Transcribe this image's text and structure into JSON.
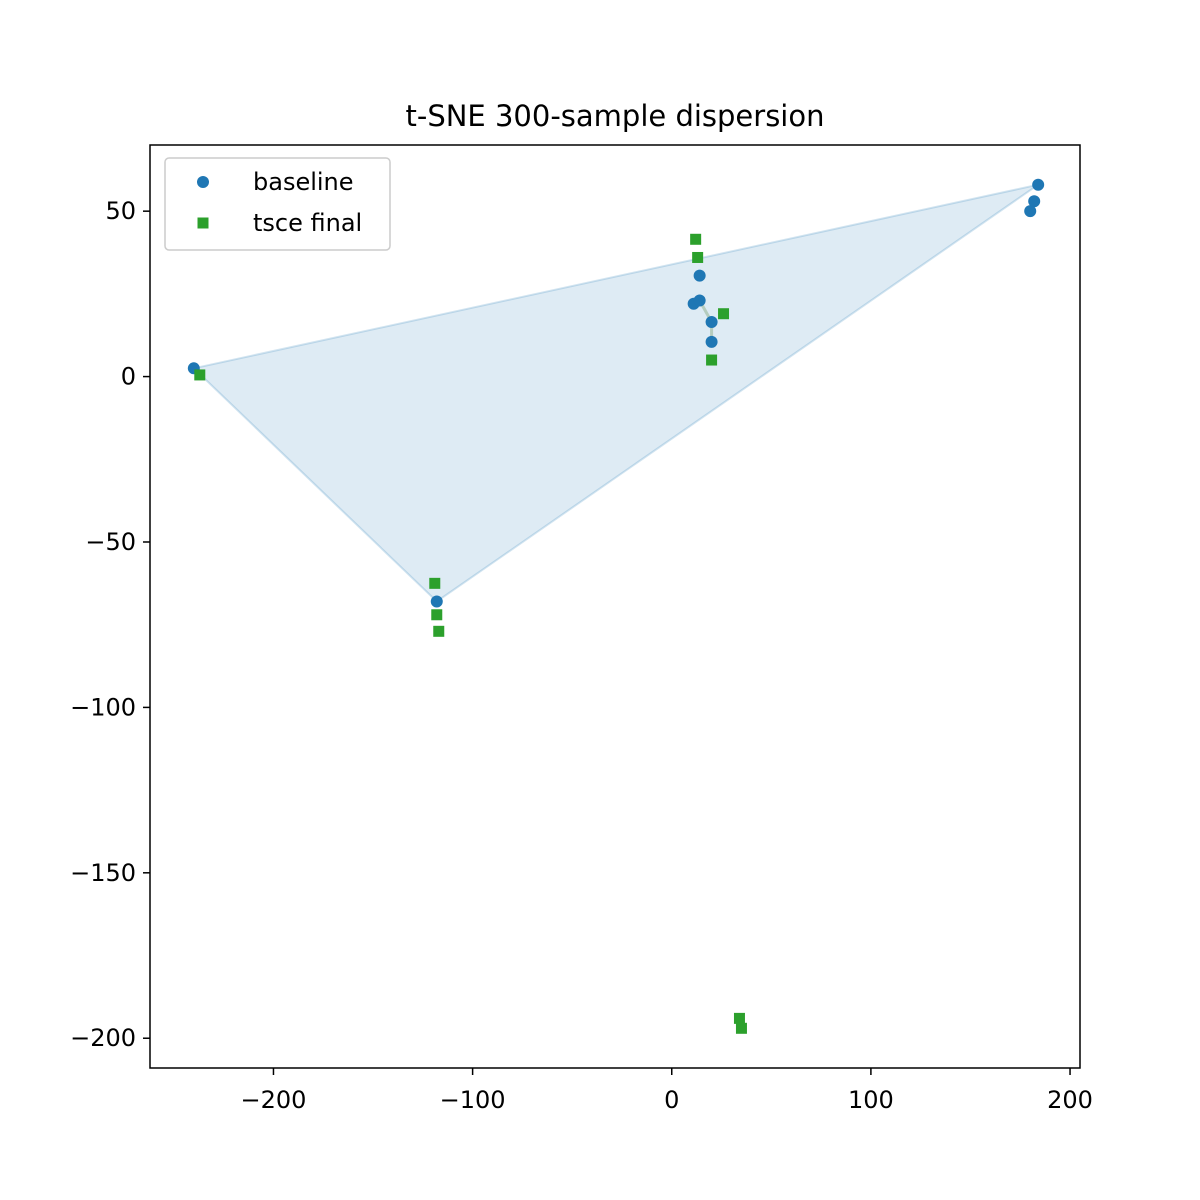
{
  "chart_data": {
    "type": "scatter",
    "title": "t-SNE 300-sample dispersion",
    "xlabel": "",
    "ylabel": "",
    "xlim": [
      -262,
      205
    ],
    "ylim": [
      -209,
      70
    ],
    "xticks": [
      -200,
      -100,
      0,
      100,
      200
    ],
    "yticks": [
      50,
      0,
      -50,
      -100,
      -150,
      -200
    ],
    "legend_position": "top-left",
    "grid": false,
    "hull": {
      "points": [
        [
          -240,
          2.5
        ],
        [
          184,
          58
        ],
        [
          -118,
          -68
        ]
      ],
      "color": "#1f77b4"
    },
    "connectors": [
      [
        [
          14,
          23
        ],
        [
          20,
          16.5
        ]
      ],
      [
        [
          20,
          16.5
        ],
        [
          20,
          10.5
        ]
      ]
    ],
    "series": [
      {
        "name": "baseline",
        "marker": "circle",
        "color": "#1f77b4",
        "points": [
          [
            -240,
            2.5
          ],
          [
            -118,
            -68
          ],
          [
            11,
            22
          ],
          [
            14,
            23
          ],
          [
            14,
            30.5
          ],
          [
            20,
            16.5
          ],
          [
            20,
            10.5
          ],
          [
            180,
            50
          ],
          [
            182,
            53
          ],
          [
            184,
            58
          ]
        ]
      },
      {
        "name": "tsce final",
        "marker": "square",
        "color": "#2ca02c",
        "points": [
          [
            -237,
            0.5
          ],
          [
            -119,
            -62.5
          ],
          [
            -118,
            -72
          ],
          [
            -117,
            -77
          ],
          [
            12,
            41.5
          ],
          [
            13,
            36
          ],
          [
            20,
            5
          ],
          [
            26,
            19
          ],
          [
            34,
            -194
          ],
          [
            35,
            -197
          ]
        ]
      }
    ]
  }
}
